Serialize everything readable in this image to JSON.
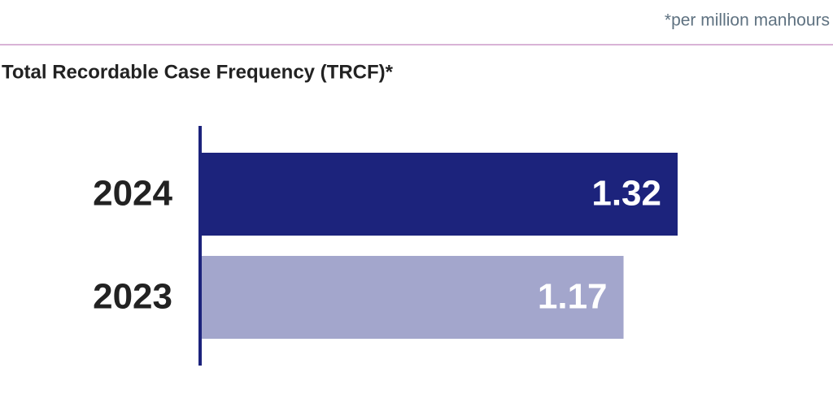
{
  "chart_data": {
    "type": "bar",
    "orientation": "horizontal",
    "title": "Total Recordable Case Frequency (TRCF)*",
    "note": "*per million manhours",
    "categories": [
      "2024",
      "2023"
    ],
    "values": [
      1.32,
      1.17
    ],
    "colors": [
      "#1c237c",
      "#a3a6cc"
    ]
  }
}
